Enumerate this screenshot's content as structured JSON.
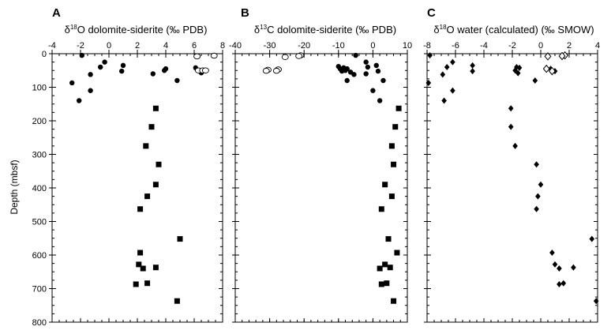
{
  "figure": {
    "y_axis_label": "Depth (mbsf)"
  },
  "chart_data": [
    {
      "panel": "A",
      "type": "scatter",
      "title_parts": {
        "pre": "δ",
        "sup": "18",
        "post": "O dolomite-siderite (‰ PDB)"
      },
      "xlim": [
        -4,
        8
      ],
      "x_major": [
        -4,
        -2,
        0,
        2,
        4,
        6,
        8
      ],
      "x_minor_step": 0.5,
      "x_tick_labels": [
        "-4",
        "-2",
        "0",
        "2",
        "4",
        "6",
        "8"
      ],
      "ylim": [
        0,
        800
      ],
      "y_reversed": true,
      "y_ticks": [
        0,
        100,
        200,
        300,
        400,
        500,
        600,
        700,
        800
      ],
      "y_tick_labels": [
        "0",
        "100",
        "200",
        "300",
        "400",
        "500",
        "600",
        "700",
        "800"
      ],
      "grid": false,
      "series": [
        {
          "marker": "circle-filled",
          "points": [
            [
              -1.9,
              5
            ],
            [
              -0.3,
              25
            ],
            [
              -0.6,
              40
            ],
            [
              1.0,
              35
            ],
            [
              0.9,
              52
            ],
            [
              -1.3,
              62
            ],
            [
              -2.6,
              87
            ],
            [
              -1.3,
              110
            ],
            [
              -2.1,
              140
            ],
            [
              3.1,
              60
            ],
            [
              4.0,
              45
            ],
            [
              3.9,
              50
            ],
            [
              4.8,
              80
            ],
            [
              6.1,
              42
            ],
            [
              6.5,
              57
            ]
          ]
        },
        {
          "marker": "circle-open",
          "points": [
            [
              6.2,
              8
            ],
            [
              7.4,
              6
            ],
            [
              6.3,
              50
            ],
            [
              6.6,
              50
            ],
            [
              6.8,
              50
            ]
          ]
        },
        {
          "marker": "square-filled",
          "points": [
            [
              3.3,
              163
            ],
            [
              3.0,
              218
            ],
            [
              2.6,
              275
            ],
            [
              3.5,
              330
            ],
            [
              3.3,
              390
            ],
            [
              2.7,
              425
            ],
            [
              2.2,
              463
            ],
            [
              5.0,
              552
            ],
            [
              2.2,
              593
            ],
            [
              2.1,
              628
            ],
            [
              2.4,
              640
            ],
            [
              3.3,
              637
            ],
            [
              1.9,
              687
            ],
            [
              2.7,
              684
            ],
            [
              4.8,
              737
            ]
          ]
        }
      ]
    },
    {
      "panel": "B",
      "type": "scatter",
      "title_parts": {
        "pre": "δ",
        "sup": "13",
        "post": "C dolomite-siderite (‰ PDB)"
      },
      "xlim": [
        -40,
        10
      ],
      "x_major": [
        -40,
        -30,
        -20,
        -10,
        0,
        10
      ],
      "x_minor_step": 2,
      "x_tick_labels": [
        "-40",
        "-30",
        "-20",
        "-10",
        "0",
        "10"
      ],
      "ylim": [
        0,
        800
      ],
      "y_reversed": true,
      "y_ticks": [
        0,
        100,
        200,
        300,
        400,
        500,
        600,
        700,
        800
      ],
      "y_tick_labels": [
        "0",
        "100",
        "200",
        "300",
        "400",
        "500",
        "600",
        "700",
        "800"
      ],
      "grid": false,
      "series": [
        {
          "marker": "circle-filled",
          "points": [
            [
              -5.0,
              5
            ],
            [
              -2.0,
              25
            ],
            [
              -1.5,
              40
            ],
            [
              1.0,
              35
            ],
            [
              1.5,
              52
            ],
            [
              -2.0,
              60
            ],
            [
              -10.0,
              38
            ],
            [
              -9.5,
              45
            ],
            [
              -8.5,
              42
            ],
            [
              -7.5,
              45
            ],
            [
              -8.0,
              50
            ],
            [
              -6.5,
              55
            ],
            [
              -9.0,
              52
            ],
            [
              -5.5,
              62
            ],
            [
              -7.5,
              80
            ],
            [
              3.0,
              80
            ],
            [
              0.0,
              110
            ],
            [
              2.0,
              140
            ]
          ]
        },
        {
          "marker": "circle-open",
          "points": [
            [
              -21.0,
              5
            ],
            [
              -21.5,
              7
            ],
            [
              -25.5,
              10
            ],
            [
              -30.5,
              48
            ],
            [
              -31.0,
              51
            ],
            [
              -27.5,
              47
            ],
            [
              -28.0,
              51
            ]
          ]
        },
        {
          "marker": "square-filled",
          "points": [
            [
              7.5,
              163
            ],
            [
              6.5,
              218
            ],
            [
              5.5,
              275
            ],
            [
              6.0,
              330
            ],
            [
              3.5,
              390
            ],
            [
              5.5,
              425
            ],
            [
              2.5,
              463
            ],
            [
              4.5,
              552
            ],
            [
              7.0,
              593
            ],
            [
              3.5,
              628
            ],
            [
              2.0,
              640
            ],
            [
              5.0,
              637
            ],
            [
              2.5,
              687
            ],
            [
              4.0,
              684
            ],
            [
              6.0,
              737
            ]
          ]
        }
      ]
    },
    {
      "panel": "C",
      "type": "scatter",
      "title_parts": {
        "pre": "δ",
        "sup": "18",
        "post": "O water (calculated) (‰ SMOW)"
      },
      "xlim": [
        -8,
        4
      ],
      "x_major": [
        -8,
        -6,
        -4,
        -2,
        0,
        2,
        4
      ],
      "x_minor_step": 0.5,
      "x_tick_labels": [
        "-8",
        "-6",
        "-4",
        "-2",
        "0",
        "2",
        "4"
      ],
      "ylim": [
        0,
        800
      ],
      "y_reversed": true,
      "y_ticks": [
        0,
        100,
        200,
        300,
        400,
        500,
        600,
        700,
        800
      ],
      "y_tick_labels": [
        "0",
        "100",
        "200",
        "300",
        "400",
        "500",
        "600",
        "700",
        "800"
      ],
      "grid": false,
      "series": [
        {
          "marker": "diamond-filled",
          "points": [
            [
              -7.8,
              5
            ],
            [
              -6.2,
              25
            ],
            [
              -6.6,
              40
            ],
            [
              -4.8,
              35
            ],
            [
              -4.8,
              52
            ],
            [
              -6.9,
              62
            ],
            [
              -7.9,
              87
            ],
            [
              -6.2,
              110
            ],
            [
              -6.8,
              140
            ],
            [
              -1.7,
              40
            ],
            [
              -1.8,
              50
            ],
            [
              -1.5,
              42
            ],
            [
              -1.6,
              58
            ],
            [
              -0.4,
              80
            ],
            [
              0.7,
              45
            ],
            [
              0.8,
              55
            ],
            [
              1.0,
              52
            ]
          ]
        },
        {
          "marker": "diamond-open",
          "points": [
            [
              0.5,
              8
            ],
            [
              1.7,
              5
            ],
            [
              1.5,
              7
            ],
            [
              0.4,
              45
            ],
            [
              0.8,
              52
            ]
          ]
        },
        {
          "marker": "diamond-filled-late",
          "points": [
            [
              -2.1,
              163
            ],
            [
              -2.1,
              218
            ],
            [
              -1.8,
              275
            ],
            [
              -0.3,
              330
            ],
            [
              0.0,
              390
            ],
            [
              -0.2,
              425
            ],
            [
              -0.3,
              463
            ],
            [
              3.6,
              552
            ],
            [
              0.8,
              593
            ],
            [
              1.0,
              628
            ],
            [
              1.3,
              640
            ],
            [
              2.3,
              637
            ],
            [
              1.3,
              687
            ],
            [
              1.6,
              684
            ],
            [
              3.9,
              737
            ]
          ]
        }
      ]
    }
  ]
}
